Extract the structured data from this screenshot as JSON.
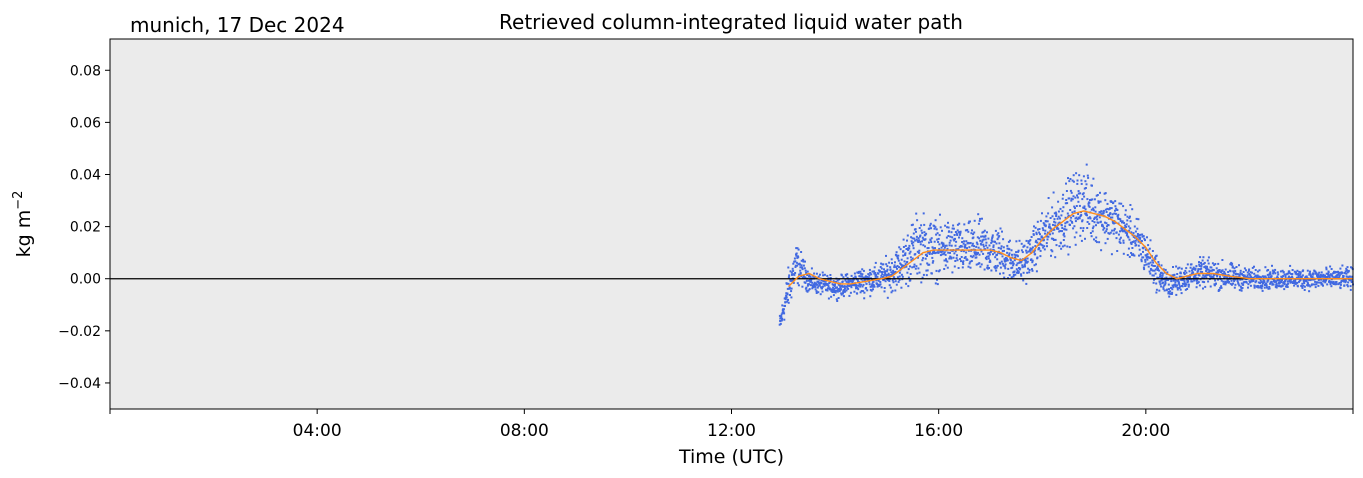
{
  "chart_data": {
    "type": "scatter",
    "location_label": "munich, 17 Dec 2024",
    "title": "Retrieved column-integrated liquid water path",
    "xlabel": "Time (UTC)",
    "ylabel": "kg m",
    "ylabel_superscript": "−2",
    "x_unit": "hours UTC",
    "xlim": [
      0,
      24
    ],
    "ylim": [
      -0.05,
      0.092
    ],
    "x_ticks": [
      0,
      4,
      8,
      12,
      16,
      20,
      24
    ],
    "x_tick_labels": [
      "",
      "04:00",
      "08:00",
      "12:00",
      "16:00",
      "20:00",
      ""
    ],
    "y_ticks": [
      -0.04,
      -0.02,
      0.0,
      0.02,
      0.04,
      0.06,
      0.08
    ],
    "y_tick_labels": [
      "−0.04",
      "−0.02",
      "0.00",
      "0.02",
      "0.04",
      "0.06",
      "0.08"
    ],
    "zero_line": true,
    "background": "#ebebeb",
    "series": [
      {
        "role": "raw",
        "color": "#4169e1",
        "x": [
          12.93,
          13.0,
          13.1,
          13.25,
          13.4,
          13.5,
          13.7,
          13.9,
          14.1,
          14.3,
          14.5,
          14.8,
          15.0,
          15.2,
          15.4,
          15.6,
          15.8,
          16.0,
          16.2,
          16.5,
          16.8,
          17.0,
          17.2,
          17.4,
          17.6,
          17.8,
          18.0,
          18.2,
          18.4,
          18.6,
          18.8,
          19.0,
          19.2,
          19.4,
          19.6,
          19.8,
          20.0,
          20.2,
          20.4,
          20.6,
          20.8,
          21.0,
          21.2,
          21.5,
          22.0,
          22.5,
          23.0,
          23.5,
          24.0
        ],
        "y": [
          -0.018,
          -0.012,
          -0.004,
          0.006,
          0.002,
          -0.001,
          -0.002,
          -0.003,
          -0.003,
          -0.002,
          -0.001,
          0.0,
          0.001,
          0.004,
          0.008,
          0.013,
          0.012,
          0.011,
          0.012,
          0.011,
          0.012,
          0.011,
          0.01,
          0.007,
          0.006,
          0.01,
          0.016,
          0.02,
          0.023,
          0.027,
          0.029,
          0.026,
          0.024,
          0.022,
          0.019,
          0.015,
          0.01,
          0.003,
          -0.002,
          -0.001,
          0.001,
          0.002,
          0.002,
          0.001,
          0.0,
          0.0,
          0.0,
          0.0,
          0.0
        ],
        "spread": [
          0.003,
          0.004,
          0.006,
          0.006,
          0.004,
          0.003,
          0.003,
          0.003,
          0.003,
          0.003,
          0.004,
          0.004,
          0.005,
          0.006,
          0.008,
          0.009,
          0.009,
          0.008,
          0.008,
          0.007,
          0.008,
          0.007,
          0.007,
          0.006,
          0.006,
          0.006,
          0.007,
          0.008,
          0.009,
          0.01,
          0.01,
          0.009,
          0.008,
          0.008,
          0.007,
          0.007,
          0.006,
          0.005,
          0.004,
          0.004,
          0.004,
          0.004,
          0.004,
          0.004,
          0.003,
          0.003,
          0.003,
          0.003,
          0.003
        ]
      },
      {
        "role": "smoothed",
        "color": "#ff8c1a",
        "x": [
          13.1,
          13.3,
          13.5,
          13.7,
          13.9,
          14.1,
          14.3,
          14.6,
          14.9,
          15.1,
          15.3,
          15.5,
          15.7,
          15.9,
          16.1,
          16.4,
          16.7,
          17.0,
          17.2,
          17.4,
          17.6,
          17.8,
          18.0,
          18.2,
          18.4,
          18.6,
          18.8,
          19.0,
          19.2,
          19.4,
          19.6,
          19.8,
          20.0,
          20.2,
          20.4,
          20.6,
          20.8,
          21.0,
          21.3,
          21.6,
          22.0,
          22.5,
          23.0,
          23.5,
          24.0
        ],
        "y": [
          -0.003,
          0.001,
          0.002,
          0.0,
          -0.001,
          -0.002,
          -0.002,
          -0.001,
          0.0,
          0.001,
          0.004,
          0.007,
          0.01,
          0.011,
          0.011,
          0.011,
          0.011,
          0.011,
          0.01,
          0.008,
          0.007,
          0.01,
          0.015,
          0.019,
          0.022,
          0.025,
          0.026,
          0.025,
          0.024,
          0.022,
          0.019,
          0.016,
          0.012,
          0.006,
          0.002,
          0.0,
          0.001,
          0.002,
          0.002,
          0.001,
          0.0,
          0.0,
          0.0,
          0.0,
          0.0
        ]
      }
    ]
  }
}
